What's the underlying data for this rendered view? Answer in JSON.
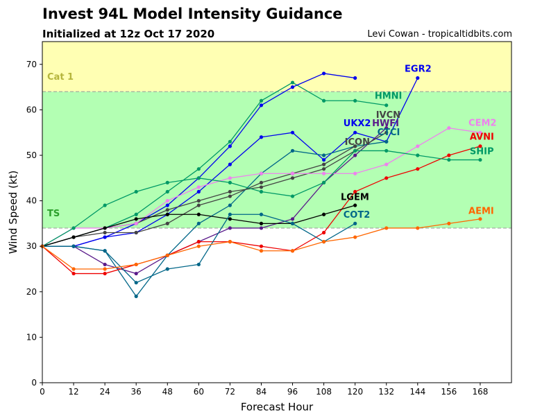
{
  "header": {
    "title": "Invest 94L Model Intensity Guidance",
    "subtitle": "Initialized at 12z Oct 17 2020",
    "credit": "Levi Cowan - tropicaltidbits.com"
  },
  "chart_data": {
    "type": "line",
    "xlabel": "Forecast Hour",
    "ylabel": "Wind Speed (kt)",
    "xlim": [
      0,
      180
    ],
    "ylim": [
      0,
      75
    ],
    "xticks": [
      0,
      12,
      24,
      36,
      48,
      60,
      72,
      84,
      96,
      108,
      120,
      132,
      144,
      156,
      168
    ],
    "yticks": [
      0,
      10,
      20,
      30,
      40,
      50,
      60,
      70
    ],
    "bands": [
      {
        "label": "TS",
        "from": 34,
        "to": 64,
        "color": "#b3ffb3",
        "label_color": "#2ca02c"
      },
      {
        "label": "Cat 1",
        "from": 64,
        "to": 75,
        "color": "#ffffb3",
        "label_color": "#b5b53c"
      }
    ],
    "series": [
      {
        "name": "EGR2",
        "color": "#0000ee",
        "x": [
          0,
          12,
          24,
          36,
          48,
          60,
          72,
          84,
          96,
          108,
          120,
          132,
          144
        ],
        "y": [
          30,
          30,
          32,
          33,
          37,
          42,
          48,
          54,
          55,
          49,
          55,
          53,
          67
        ]
      },
      {
        "name": "HMNI",
        "color": "#009966",
        "x": [
          0,
          12,
          24,
          36,
          48,
          60,
          72,
          84,
          96,
          108,
          120,
          132
        ],
        "y": [
          30,
          32,
          34,
          37,
          42,
          47,
          53,
          62,
          66,
          62,
          62,
          61
        ]
      },
      {
        "name": "UKX2",
        "color": "#0000ee",
        "x": [
          0,
          12,
          24,
          36,
          48,
          60,
          72,
          84,
          96,
          108,
          120
        ],
        "y": [
          30,
          30,
          32,
          35,
          39,
          45,
          52,
          61,
          65,
          68,
          67
        ]
      },
      {
        "name": "HWFI",
        "color": "#5a1a8a",
        "x": [
          0,
          12,
          24,
          36,
          48,
          60,
          72,
          84,
          96,
          108,
          120,
          132
        ],
        "y": [
          30,
          30,
          26,
          24,
          28,
          31,
          34,
          34,
          36,
          44,
          50,
          56
        ]
      },
      {
        "name": "IVCN",
        "color": "#444444",
        "x": [
          0,
          12,
          24,
          36,
          48,
          60,
          72,
          84,
          96,
          108,
          120,
          132
        ],
        "y": [
          30,
          32,
          34,
          35,
          38,
          40,
          42,
          43,
          45,
          47,
          51,
          55
        ]
      },
      {
        "name": "CTCI",
        "color": "#006688",
        "x": [
          0,
          12,
          24,
          36,
          48,
          60,
          72,
          84,
          96,
          108,
          120,
          132
        ],
        "y": [
          30,
          30,
          29,
          19,
          28,
          35,
          39,
          46,
          51,
          50,
          52,
          53
        ]
      },
      {
        "name": "ICON",
        "color": "#444444",
        "x": [
          0,
          12,
          24,
          36,
          48,
          60,
          72,
          84,
          96,
          108,
          120
        ],
        "y": [
          30,
          32,
          33,
          33,
          35,
          39,
          41,
          44,
          46,
          48,
          52
        ]
      },
      {
        "name": "CEM2",
        "color": "#ee82ee",
        "x": [
          0,
          12,
          24,
          36,
          48,
          60,
          72,
          84,
          96,
          108,
          120,
          132,
          144,
          156,
          168
        ],
        "y": [
          30,
          34,
          34,
          35,
          40,
          43,
          45,
          46,
          46,
          46,
          46,
          48,
          52,
          56,
          55
        ]
      },
      {
        "name": "AVNI",
        "color": "#ee0000",
        "x": [
          0,
          12,
          24,
          36,
          48,
          60,
          72,
          84,
          96,
          108,
          120,
          132,
          144,
          156,
          168
        ],
        "y": [
          30,
          24,
          24,
          26,
          28,
          31,
          31,
          30,
          29,
          33,
          42,
          45,
          47,
          50,
          52
        ]
      },
      {
        "name": "SHIP",
        "color": "#009966",
        "x": [
          0,
          12,
          24,
          36,
          48,
          60,
          72,
          84,
          96,
          108,
          120,
          132,
          144,
          156,
          168
        ],
        "y": [
          30,
          34,
          39,
          42,
          44,
          45,
          44,
          42,
          41,
          44,
          51,
          51,
          50,
          49,
          49
        ]
      },
      {
        "name": "LGEM",
        "color": "#000000",
        "x": [
          0,
          12,
          24,
          36,
          48,
          60,
          72,
          84,
          96,
          108,
          120
        ],
        "y": [
          30,
          32,
          34,
          36,
          37,
          37,
          36,
          35,
          35,
          37,
          39
        ]
      },
      {
        "name": "COT2",
        "color": "#006688",
        "x": [
          0,
          12,
          24,
          36,
          48,
          60,
          72,
          84,
          96,
          108,
          120
        ],
        "y": [
          30,
          30,
          29,
          22,
          25,
          26,
          37,
          37,
          35,
          31,
          35
        ]
      },
      {
        "name": "AEMI",
        "color": "#ff6600",
        "x": [
          0,
          12,
          24,
          36,
          48,
          60,
          72,
          84,
          96,
          108,
          120,
          132,
          144,
          156,
          168
        ],
        "y": [
          30,
          25,
          25,
          26,
          28,
          30,
          31,
          29,
          29,
          31,
          32,
          34,
          34,
          35,
          36
        ]
      }
    ],
    "series_labels": [
      {
        "name": "EGR2",
        "x": 139,
        "y": 68.4,
        "color": "#0000ee"
      },
      {
        "name": "HMNI",
        "x": 127.5,
        "y": 62.4,
        "color": "#009966"
      },
      {
        "name": "IVCN",
        "x": 128,
        "y": 58.2,
        "color": "#444444"
      },
      {
        "name": "UKX2",
        "x": 115.5,
        "y": 56.4,
        "color": "#0000ee"
      },
      {
        "name": "HWFI",
        "x": 126.5,
        "y": 56.4,
        "color": "#5a1a8a"
      },
      {
        "name": "CTCI",
        "x": 128.5,
        "y": 54.4,
        "color": "#006688"
      },
      {
        "name": "ICON",
        "x": 116,
        "y": 52.3,
        "color": "#444444"
      },
      {
        "name": "CEM2",
        "x": 163.5,
        "y": 56.5,
        "color": "#ee82ee"
      },
      {
        "name": "AVNI",
        "x": 164,
        "y": 53.4,
        "color": "#ee0000"
      },
      {
        "name": "SHIP",
        "x": 164,
        "y": 50.2,
        "color": "#009966"
      },
      {
        "name": "LGEM",
        "x": 114.5,
        "y": 40.2,
        "color": "#000000"
      },
      {
        "name": "COT2",
        "x": 115.5,
        "y": 36.3,
        "color": "#006688"
      },
      {
        "name": "AEMI",
        "x": 163.5,
        "y": 37.1,
        "color": "#ff6600"
      }
    ]
  }
}
